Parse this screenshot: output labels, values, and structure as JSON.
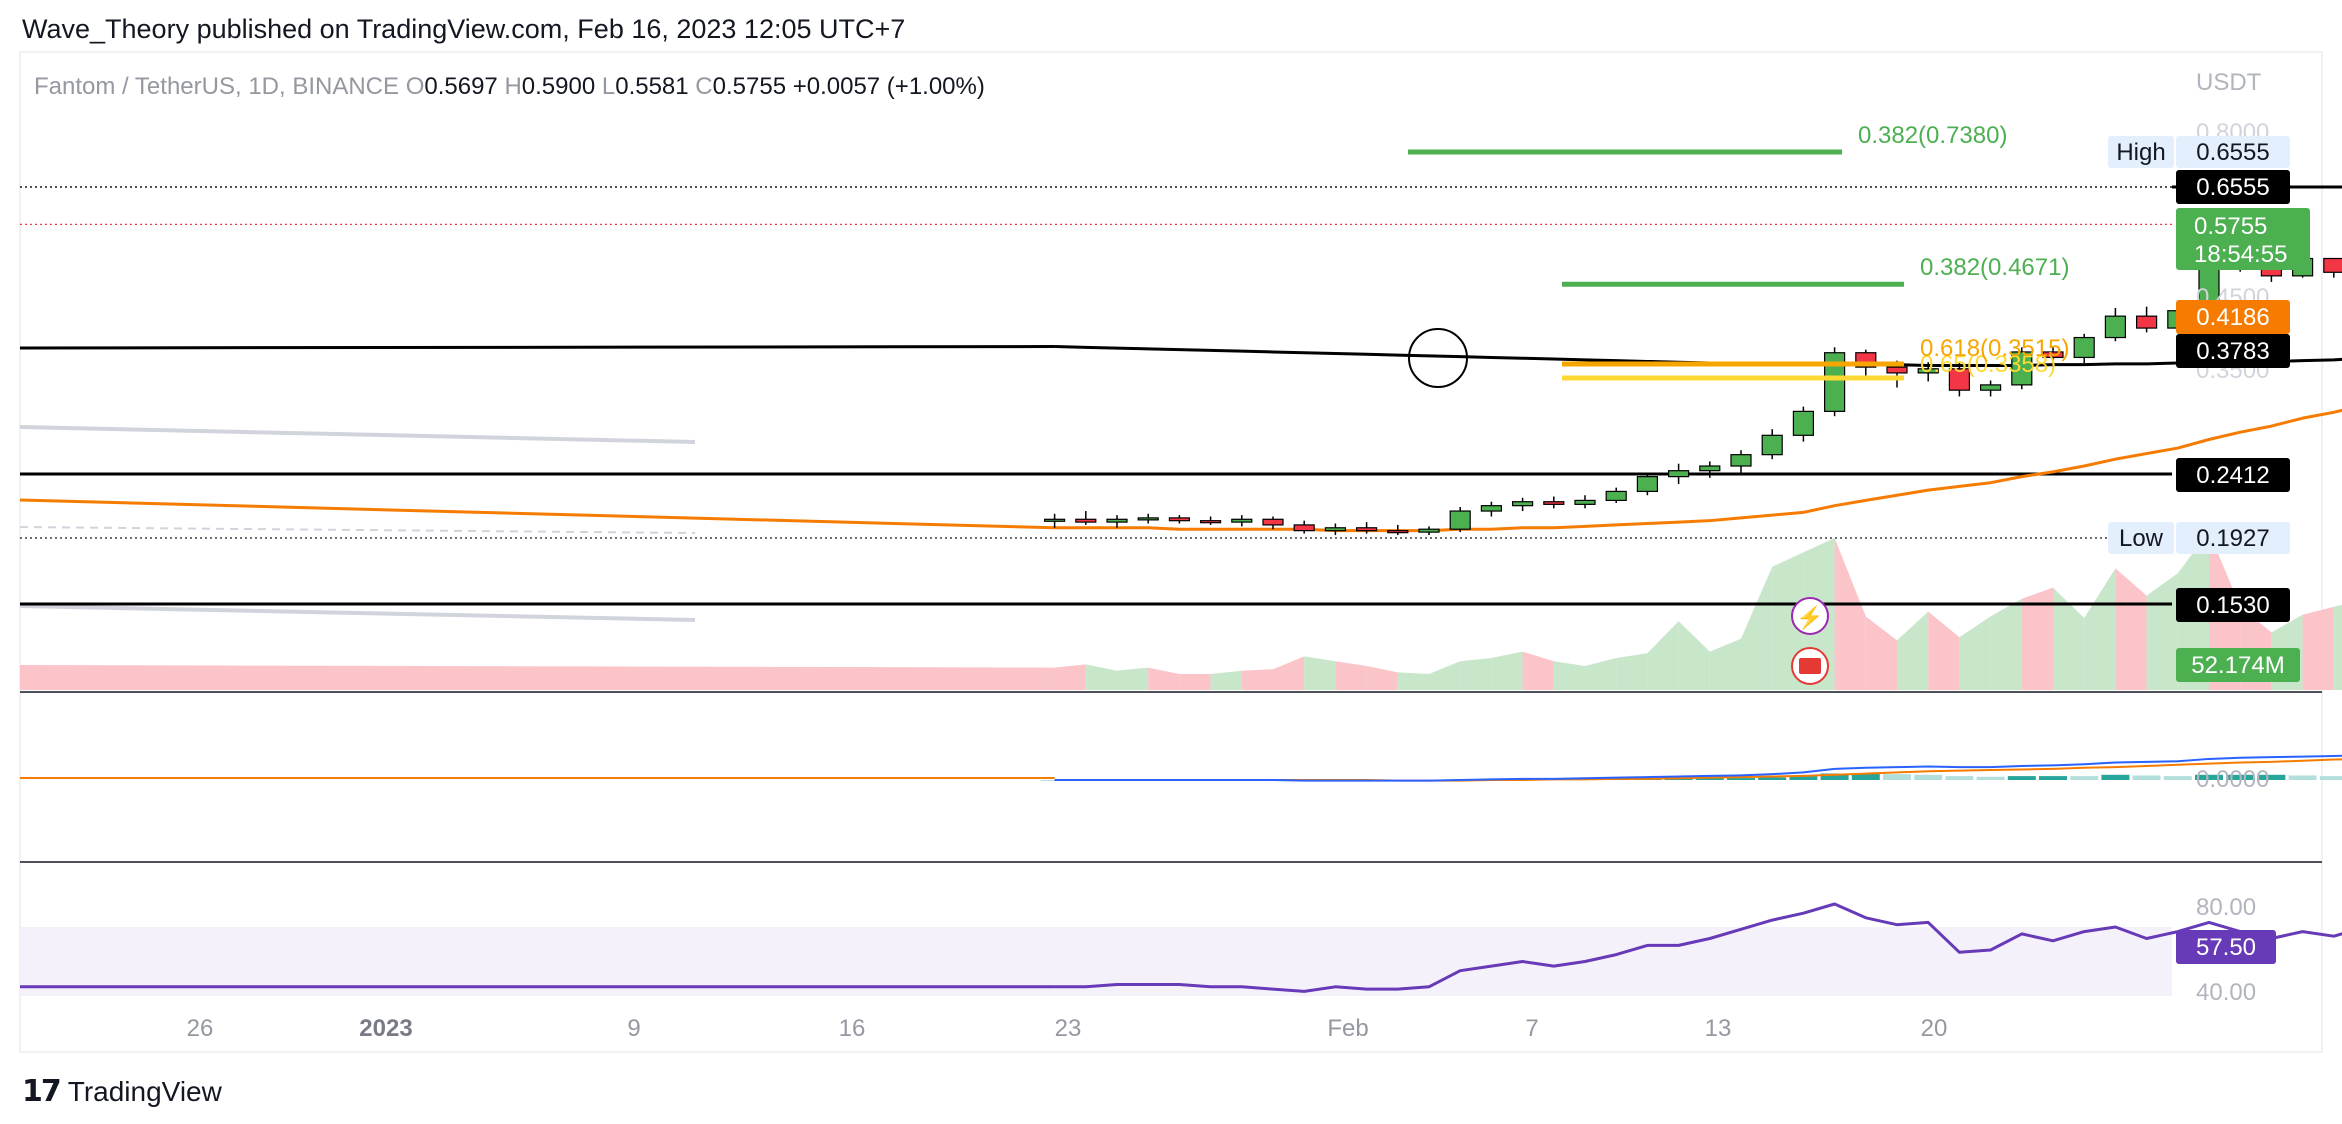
{
  "header": {
    "published": "Wave_Theory published on TradingView.com, Feb 16, 2023 12:05 UTC+7"
  },
  "footer": {
    "brand": "TradingView"
  },
  "legend": {
    "symbol": "Fantom / TetherUS, 1D, BINANCE",
    "o_label": "O",
    "o": "0.5697",
    "h_label": "H",
    "h": "0.5900",
    "l_label": "L",
    "l": "0.5581",
    "c_label": "C",
    "c": "0.5755",
    "change": "+0.0057 (+1.00%)"
  },
  "colors": {
    "up": "#4caf50",
    "down": "#f23645",
    "ema": "#f57c00",
    "sma": "#000000",
    "macd": "#2962ff",
    "signal": "#f57c00",
    "rsi": "#673ab7",
    "fib_382": "#4caf50",
    "fib_618": "#f7a600",
    "fib_65": "#fdd835",
    "osc_up": "#c8e6c9",
    "osc_down": "#fbc4c9"
  },
  "chart_data": [
    {
      "type": "candlestick",
      "title": "Fantom / TetherUS, 1D, BINANCE",
      "ylabel": "USDT",
      "ylim": [
        0.15,
        0.8
      ],
      "y_scale": "log",
      "y_ticks": [
        "0.8000",
        "0.4500",
        "0.3500"
      ],
      "x_ticks": [
        "26",
        "2023",
        "9",
        "16",
        "23",
        "Feb",
        "7",
        "13",
        "20"
      ],
      "dates": [
        "2022-12-20",
        "2022-12-21",
        "2022-12-22",
        "2022-12-23",
        "2022-12-24",
        "2022-12-25",
        "2022-12-26",
        "2022-12-27",
        "2022-12-28",
        "2022-12-29",
        "2022-12-30",
        "2022-12-31",
        "2023-01-01",
        "2023-01-02",
        "2023-01-03",
        "2023-01-04",
        "2023-01-05",
        "2023-01-06",
        "2023-01-07",
        "2023-01-08",
        "2023-01-09",
        "2023-01-10",
        "2023-01-11",
        "2023-01-12",
        "2023-01-13",
        "2023-01-14",
        "2023-01-15",
        "2023-01-16",
        "2023-01-17",
        "2023-01-18",
        "2023-01-19",
        "2023-01-20",
        "2023-01-21",
        "2023-01-22",
        "2023-01-23",
        "2023-01-24",
        "2023-01-25",
        "2023-01-26",
        "2023-01-27",
        "2023-01-28",
        "2023-01-29",
        "2023-01-30",
        "2023-01-31",
        "2023-02-01",
        "2023-02-02",
        "2023-02-03",
        "2023-02-04",
        "2023-02-05",
        "2023-02-06",
        "2023-02-07",
        "2023-02-08",
        "2023-02-09",
        "2023-02-10",
        "2023-02-11",
        "2023-02-12",
        "2023-02-13",
        "2023-02-14",
        "2023-02-15",
        "2023-02-16"
      ],
      "ohlc": [
        [
          0.205,
          0.21,
          0.2,
          0.206
        ],
        [
          0.206,
          0.212,
          0.202,
          0.204
        ],
        [
          0.204,
          0.209,
          0.2,
          0.206
        ],
        [
          0.206,
          0.21,
          0.203,
          0.207
        ],
        [
          0.207,
          0.209,
          0.203,
          0.205
        ],
        [
          0.205,
          0.208,
          0.202,
          0.204
        ],
        [
          0.204,
          0.209,
          0.201,
          0.206
        ],
        [
          0.206,
          0.208,
          0.199,
          0.202
        ],
        [
          0.202,
          0.205,
          0.196,
          0.198
        ],
        [
          0.198,
          0.203,
          0.195,
          0.2
        ],
        [
          0.2,
          0.204,
          0.196,
          0.198
        ],
        [
          0.198,
          0.202,
          0.195,
          0.197
        ],
        [
          0.197,
          0.201,
          0.195,
          0.199
        ],
        [
          0.199,
          0.215,
          0.197,
          0.212
        ],
        [
          0.212,
          0.219,
          0.208,
          0.216
        ],
        [
          0.216,
          0.222,
          0.212,
          0.219
        ],
        [
          0.219,
          0.223,
          0.214,
          0.217
        ],
        [
          0.217,
          0.224,
          0.214,
          0.22
        ],
        [
          0.22,
          0.23,
          0.218,
          0.227
        ],
        [
          0.227,
          0.242,
          0.224,
          0.239
        ],
        [
          0.239,
          0.25,
          0.233,
          0.244
        ],
        [
          0.244,
          0.252,
          0.238,
          0.248
        ],
        [
          0.248,
          0.262,
          0.24,
          0.258
        ],
        [
          0.258,
          0.282,
          0.254,
          0.276
        ],
        [
          0.276,
          0.305,
          0.27,
          0.3
        ],
        [
          0.3,
          0.375,
          0.295,
          0.368
        ],
        [
          0.368,
          0.372,
          0.34,
          0.35
        ],
        [
          0.35,
          0.358,
          0.326,
          0.343
        ],
        [
          0.343,
          0.356,
          0.333,
          0.348
        ],
        [
          0.348,
          0.355,
          0.316,
          0.323
        ],
        [
          0.323,
          0.334,
          0.316,
          0.329
        ],
        [
          0.329,
          0.375,
          0.324,
          0.369
        ],
        [
          0.369,
          0.375,
          0.35,
          0.362
        ],
        [
          0.362,
          0.393,
          0.355,
          0.388
        ],
        [
          0.388,
          0.43,
          0.383,
          0.418
        ],
        [
          0.418,
          0.432,
          0.395,
          0.401
        ],
        [
          0.401,
          0.437,
          0.395,
          0.426
        ],
        [
          0.426,
          0.513,
          0.423,
          0.508
        ],
        [
          0.508,
          0.512,
          0.488,
          0.496
        ],
        [
          0.496,
          0.502,
          0.471,
          0.481
        ],
        [
          0.481,
          0.516,
          0.478,
          0.511
        ],
        [
          0.511,
          0.512,
          0.478,
          0.487
        ],
        [
          0.487,
          0.54,
          0.482,
          0.533
        ],
        [
          0.533,
          0.58,
          0.51,
          0.566
        ],
        [
          0.566,
          0.635,
          0.56,
          0.624
        ],
        [
          0.624,
          0.66,
          0.606,
          0.646
        ],
        [
          0.646,
          0.652,
          0.607,
          0.632
        ],
        [
          0.632,
          0.634,
          0.563,
          0.58
        ],
        [
          0.58,
          0.59,
          0.542,
          0.55
        ],
        [
          0.55,
          0.61,
          0.545,
          0.606
        ],
        [
          0.606,
          0.613,
          0.542,
          0.55
        ],
        [
          0.55,
          0.551,
          0.44,
          0.473
        ],
        [
          0.473,
          0.488,
          0.445,
          0.459
        ],
        [
          0.459,
          0.5,
          0.451,
          0.492
        ],
        [
          0.492,
          0.496,
          0.458,
          0.465
        ],
        [
          0.465,
          0.493,
          0.437,
          0.483
        ],
        [
          0.483,
          0.537,
          0.482,
          0.53
        ],
        [
          0.53,
          0.576,
          0.528,
          0.569
        ],
        [
          0.5697,
          0.59,
          0.5581,
          0.5755
        ]
      ],
      "ema_50": [
        0.2,
        0.2,
        0.2,
        0.2,
        0.199,
        0.199,
        0.199,
        0.199,
        0.199,
        0.198,
        0.198,
        0.198,
        0.198,
        0.199,
        0.199,
        0.2,
        0.2,
        0.201,
        0.202,
        0.203,
        0.204,
        0.205,
        0.207,
        0.209,
        0.211,
        0.216,
        0.22,
        0.224,
        0.228,
        0.231,
        0.234,
        0.239,
        0.243,
        0.248,
        0.254,
        0.259,
        0.264,
        0.272,
        0.279,
        0.285,
        0.293,
        0.299,
        0.307,
        0.316,
        0.328,
        0.34,
        0.352,
        0.36,
        0.368,
        0.376,
        0.384,
        0.388,
        0.392,
        0.397,
        0.401,
        0.404,
        0.408,
        0.413,
        0.4186
      ],
      "sma_200": [
        0.376,
        0.375,
        0.374,
        0.373,
        0.372,
        0.371,
        0.37,
        0.369,
        0.368,
        0.367,
        0.366,
        0.365,
        0.364,
        0.363,
        0.362,
        0.361,
        0.36,
        0.359,
        0.358,
        0.357,
        0.356,
        0.355,
        0.355,
        0.354,
        0.354,
        0.353,
        0.353,
        0.353,
        0.352,
        0.352,
        0.352,
        0.352,
        0.353,
        0.353,
        0.354,
        0.354,
        0.355,
        0.356,
        0.357,
        0.357,
        0.358,
        0.359,
        0.361,
        0.362,
        0.364,
        0.366,
        0.367,
        0.368,
        0.37,
        0.371,
        0.372,
        0.373,
        0.374,
        0.374,
        0.375,
        0.376,
        0.377,
        0.377,
        0.3783
      ],
      "horizontal_levels": [
        "0.6555",
        "0.2412",
        "0.1530"
      ],
      "fib_levels": [
        {
          "label": "0.382(0.7380)",
          "value": 0.738
        },
        {
          "label": "0.382(0.4671)",
          "value": 0.4671
        },
        {
          "label": "0.618(0.3515)",
          "value": 0.3515
        },
        {
          "label": "0.65(0.3358)",
          "value": 0.3358
        }
      ],
      "price_labels": {
        "high_label": "High",
        "high": "0.6555",
        "low_label": "Low",
        "low": "0.1927",
        "last_price": "0.5755",
        "countdown": "18:54:55",
        "ema_value": "0.4186",
        "sma_value": "0.3783",
        "level_top": "0.6555",
        "level_mid": "0.2412",
        "level_low": "0.1530",
        "volume_value": "52.174M"
      },
      "volume_osc": [
        0.14,
        0.16,
        0.12,
        0.14,
        0.1,
        0.1,
        0.12,
        0.13,
        0.21,
        0.18,
        0.15,
        0.11,
        0.1,
        0.18,
        0.2,
        0.24,
        0.18,
        0.15,
        0.2,
        0.23,
        0.43,
        0.24,
        0.32,
        0.77,
        0.86,
        0.95,
        0.46,
        0.31,
        0.49,
        0.33,
        0.46,
        0.57,
        0.64,
        0.45,
        0.76,
        0.59,
        0.73,
        0.99,
        0.52,
        0.36,
        0.47,
        0.52,
        0.57,
        0.87,
        0.73,
        0.76,
        0.62,
        0.37,
        0.43,
        0.48,
        0.45,
        0.61,
        0.5,
        0.73,
        0.6,
        0.62,
        0.86,
        0.79,
        0.65
      ]
    },
    {
      "type": "line",
      "title": "MACD",
      "y_ticks": [
        "0.0000"
      ],
      "macd": [
        0.0,
        0.0,
        0.0,
        0.0,
        0.0,
        0.0,
        0.0,
        0.0,
        -0.001,
        -0.001,
        -0.001,
        -0.001,
        -0.001,
        0.0,
        0.001,
        0.002,
        0.002,
        0.003,
        0.004,
        0.005,
        0.006,
        0.007,
        0.008,
        0.01,
        0.013,
        0.019,
        0.021,
        0.022,
        0.023,
        0.022,
        0.022,
        0.024,
        0.025,
        0.027,
        0.03,
        0.031,
        0.032,
        0.036,
        0.038,
        0.039,
        0.04,
        0.041,
        0.043,
        0.046,
        0.05,
        0.054,
        0.055,
        0.053,
        0.05,
        0.049,
        0.046,
        0.039,
        0.03,
        0.026,
        0.02,
        0.016,
        0.015,
        0.016,
        0.018
      ],
      "signal": [
        0.0,
        0.0,
        0.0,
        0.0,
        0.0,
        0.0,
        0.0,
        0.0,
        0.0,
        0.0,
        0.0,
        -0.001,
        -0.001,
        -0.001,
        0.0,
        0.0,
        0.001,
        0.001,
        0.002,
        0.002,
        0.003,
        0.004,
        0.005,
        0.006,
        0.007,
        0.009,
        0.011,
        0.013,
        0.015,
        0.016,
        0.017,
        0.018,
        0.019,
        0.021,
        0.022,
        0.024,
        0.026,
        0.028,
        0.03,
        0.031,
        0.033,
        0.035,
        0.036,
        0.038,
        0.041,
        0.044,
        0.046,
        0.048,
        0.048,
        0.049,
        0.048,
        0.046,
        0.043,
        0.039,
        0.035,
        0.031,
        0.028,
        0.026,
        0.025
      ]
    },
    {
      "type": "line",
      "title": "RSI",
      "ylim": [
        30,
        90
      ],
      "y_ticks": [
        "80.00",
        "40.00"
      ],
      "band": [
        40,
        70
      ],
      "rsi": [
        44,
        44,
        45,
        45,
        45,
        44,
        44,
        43,
        42,
        44,
        43,
        43,
        44,
        51,
        53,
        55,
        53,
        55,
        58,
        62,
        62,
        65,
        69,
        73,
        76,
        80,
        74,
        71,
        72,
        59,
        60,
        67,
        64,
        68,
        70,
        65,
        68,
        72,
        68,
        65,
        68,
        66,
        70,
        73,
        75,
        74,
        70,
        64,
        58,
        62,
        56,
        48,
        46,
        51,
        47,
        49,
        54,
        57,
        57.5
      ]
    }
  ]
}
